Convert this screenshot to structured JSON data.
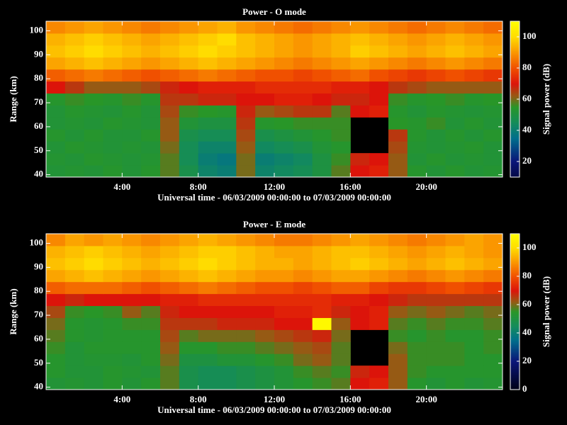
{
  "chart_data": [
    {
      "type": "heatmap",
      "title": "Power - O mode",
      "x_label": "Universal time - 06/03/2009 00:00:00 to 07/03/2009 00:00:00",
      "y_label": "Range (km)",
      "colorbar_label": "Signal power (dB)",
      "x_bins": [
        0,
        1,
        2,
        3,
        4,
        5,
        6,
        7,
        8,
        9,
        10,
        11,
        12,
        13,
        14,
        15,
        16,
        17,
        18,
        19,
        20,
        21,
        22,
        23,
        24
      ],
      "y_bins": [
        39,
        44,
        49,
        54,
        59,
        64,
        69,
        74,
        79,
        84,
        89,
        94,
        99,
        104
      ],
      "z": [
        [
          52,
          53,
          52,
          54,
          52,
          54,
          58,
          48,
          42,
          40,
          60,
          42,
          44,
          46,
          50,
          58,
          70,
          72,
          62,
          54,
          52,
          54,
          52,
          53
        ],
        [
          53,
          52,
          54,
          53,
          52,
          53,
          58,
          46,
          40,
          38,
          60,
          40,
          42,
          44,
          50,
          56,
          68,
          70,
          62,
          52,
          54,
          52,
          53,
          52
        ],
        [
          52,
          54,
          53,
          52,
          53,
          52,
          60,
          46,
          42,
          42,
          62,
          44,
          46,
          48,
          52,
          54,
          null,
          null,
          64,
          53,
          52,
          53,
          54,
          52
        ],
        [
          54,
          52,
          54,
          52,
          52,
          54,
          62,
          48,
          46,
          46,
          64,
          48,
          50,
          52,
          54,
          56,
          null,
          null,
          66,
          54,
          52,
          54,
          52,
          54
        ],
        [
          52,
          53,
          52,
          54,
          53,
          52,
          62,
          52,
          50,
          50,
          66,
          54,
          55,
          56,
          56,
          56,
          null,
          null,
          55,
          54,
          56,
          52,
          54,
          52
        ],
        [
          52,
          54,
          53,
          52,
          54,
          52,
          64,
          56,
          55,
          54,
          68,
          62,
          64,
          66,
          66,
          58,
          70,
          72,
          54,
          52,
          54,
          53,
          52,
          53
        ],
        [
          54,
          56,
          55,
          54,
          56,
          54,
          66,
          66,
          68,
          68,
          70,
          70,
          72,
          72,
          70,
          68,
          68,
          70,
          56,
          54,
          55,
          56,
          54,
          55
        ],
        [
          70,
          66,
          62,
          62,
          62,
          64,
          68,
          70,
          72,
          72,
          72,
          74,
          74,
          74,
          74,
          72,
          72,
          70,
          66,
          64,
          62,
          62,
          62,
          62
        ],
        [
          82,
          84,
          86,
          84,
          82,
          80,
          82,
          84,
          86,
          84,
          82,
          80,
          80,
          78,
          80,
          82,
          84,
          80,
          78,
          76,
          78,
          80,
          78,
          76
        ],
        [
          92,
          94,
          96,
          94,
          92,
          90,
          92,
          94,
          96,
          94,
          92,
          90,
          88,
          86,
          88,
          90,
          92,
          90,
          88,
          86,
          88,
          90,
          88,
          86
        ],
        [
          96,
          98,
          100,
          98,
          96,
          94,
          96,
          98,
          100,
          98,
          96,
          94,
          92,
          90,
          92,
          94,
          98,
          96,
          94,
          92,
          94,
          96,
          94,
          92
        ],
        [
          94,
          96,
          98,
          96,
          94,
          92,
          94,
          96,
          98,
          100,
          96,
          94,
          92,
          90,
          92,
          94,
          96,
          94,
          92,
          90,
          92,
          94,
          92,
          90
        ],
        [
          88,
          90,
          92,
          90,
          88,
          86,
          88,
          90,
          92,
          94,
          90,
          88,
          86,
          84,
          86,
          88,
          90,
          88,
          86,
          84,
          86,
          88,
          86,
          84
        ]
      ],
      "xlim": [
        0,
        24
      ],
      "ylim": [
        39,
        104
      ],
      "zlim": [
        10,
        110
      ],
      "xticks": [
        {
          "value": 4,
          "label": "4:00"
        },
        {
          "value": 8,
          "label": "8:00"
        },
        {
          "value": 12,
          "label": "12:00"
        },
        {
          "value": 16,
          "label": "16:00"
        },
        {
          "value": 20,
          "label": "20:00"
        }
      ],
      "yticks": [
        40,
        50,
        60,
        70,
        80,
        90,
        100
      ],
      "zticks": [
        20,
        40,
        60,
        80,
        100
      ]
    },
    {
      "type": "heatmap",
      "title": "Power - E mode",
      "x_label": "Universal time - 06/03/2009 00:00:00 to 07/03/2009 00:00:00",
      "y_label": "Range (km)",
      "colorbar_label": "Signal power (dB)",
      "x_bins": [
        0,
        1,
        2,
        3,
        4,
        5,
        6,
        7,
        8,
        9,
        10,
        11,
        12,
        13,
        14,
        15,
        16,
        17,
        18,
        19,
        20,
        21,
        22,
        23,
        24
      ],
      "y_bins": [
        39,
        44,
        49,
        54,
        59,
        64,
        69,
        74,
        79,
        84,
        89,
        94,
        99,
        104
      ],
      "z": [
        [
          52,
          53,
          52,
          54,
          52,
          54,
          58,
          48,
          46,
          46,
          48,
          50,
          52,
          54,
          56,
          58,
          70,
          72,
          62,
          54,
          52,
          54,
          52,
          53
        ],
        [
          54,
          52,
          52,
          54,
          53,
          52,
          58,
          48,
          46,
          46,
          48,
          50,
          52,
          56,
          58,
          56,
          68,
          70,
          62,
          56,
          54,
          54,
          54,
          54
        ],
        [
          54,
          52,
          53,
          53,
          52,
          54,
          60,
          50,
          50,
          52,
          52,
          54,
          56,
          60,
          62,
          58,
          null,
          null,
          62,
          56,
          56,
          56,
          54,
          54
        ],
        [
          56,
          52,
          54,
          54,
          54,
          54,
          62,
          54,
          54,
          56,
          56,
          58,
          60,
          62,
          64,
          58,
          null,
          null,
          60,
          56,
          56,
          56,
          54,
          56
        ],
        [
          58,
          54,
          53,
          54,
          54,
          54,
          64,
          58,
          60,
          60,
          60,
          62,
          64,
          66,
          68,
          60,
          null,
          null,
          56,
          54,
          56,
          54,
          54,
          56
        ],
        [
          60,
          54,
          53,
          54,
          56,
          56,
          66,
          66,
          66,
          68,
          68,
          68,
          70,
          70,
          108,
          62,
          70,
          72,
          58,
          56,
          58,
          56,
          56,
          58
        ],
        [
          64,
          56,
          55,
          56,
          62,
          58,
          68,
          70,
          70,
          70,
          70,
          70,
          72,
          72,
          74,
          68,
          70,
          72,
          62,
          60,
          62,
          60,
          58,
          60
        ],
        [
          70,
          68,
          70,
          70,
          70,
          70,
          72,
          72,
          74,
          74,
          74,
          74,
          74,
          74,
          74,
          72,
          72,
          70,
          68,
          66,
          66,
          66,
          66,
          66
        ],
        [
          82,
          84,
          84,
          84,
          82,
          80,
          82,
          84,
          86,
          84,
          82,
          80,
          80,
          78,
          80,
          82,
          82,
          78,
          76,
          76,
          78,
          80,
          78,
          76
        ],
        [
          92,
          94,
          96,
          94,
          92,
          90,
          92,
          94,
          96,
          94,
          92,
          90,
          90,
          88,
          90,
          92,
          92,
          90,
          88,
          86,
          88,
          90,
          88,
          86
        ],
        [
          96,
          98,
          100,
          98,
          96,
          94,
          96,
          98,
          100,
          98,
          96,
          94,
          94,
          92,
          94,
          96,
          98,
          96,
          94,
          92,
          94,
          96,
          94,
          92
        ],
        [
          94,
          96,
          98,
          96,
          94,
          92,
          94,
          96,
          98,
          98,
          96,
          94,
          92,
          92,
          94,
          96,
          96,
          94,
          92,
          90,
          92,
          94,
          92,
          90
        ],
        [
          88,
          92,
          90,
          92,
          90,
          88,
          90,
          92,
          94,
          92,
          90,
          88,
          86,
          86,
          88,
          90,
          92,
          90,
          88,
          86,
          88,
          90,
          92,
          90
        ]
      ],
      "xlim": [
        0,
        24
      ],
      "ylim": [
        39,
        104
      ],
      "zlim": [
        0,
        110
      ],
      "xticks": [
        {
          "value": 4,
          "label": "4:00"
        },
        {
          "value": 8,
          "label": "8:00"
        },
        {
          "value": 12,
          "label": "12:00"
        },
        {
          "value": 16,
          "label": "16:00"
        },
        {
          "value": 20,
          "label": "20:00"
        }
      ],
      "yticks": [
        40,
        50,
        60,
        70,
        80,
        90,
        100
      ],
      "zticks": [
        0,
        20,
        40,
        60,
        80,
        100
      ]
    }
  ]
}
